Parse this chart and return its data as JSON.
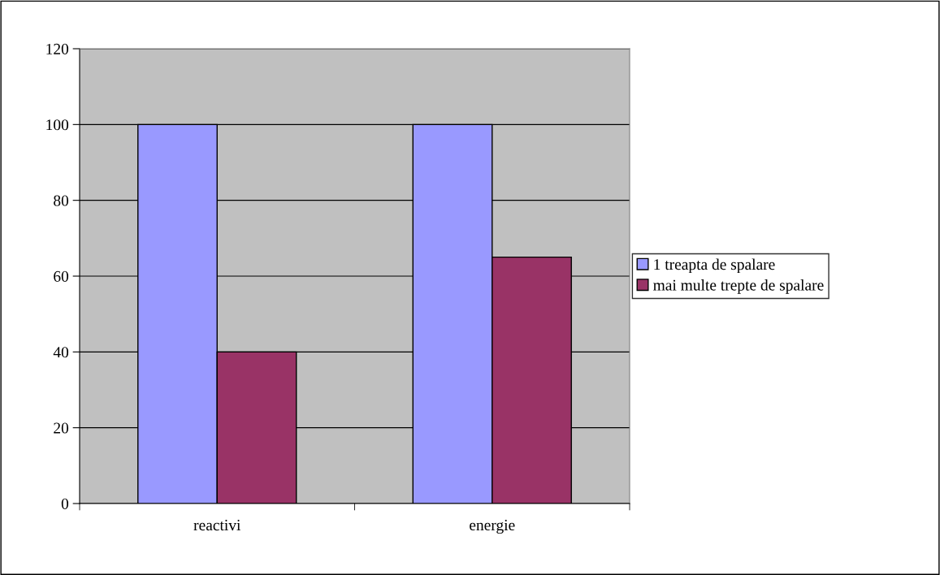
{
  "chart_data": {
    "type": "bar",
    "categories": [
      "reactivi",
      "energie"
    ],
    "series": [
      {
        "name": "1 treapta de spalare",
        "color": "#9999ff",
        "values": [
          100,
          100
        ]
      },
      {
        "name": "mai multe trepte de spalare",
        "color": "#993366",
        "values": [
          40,
          65
        ]
      }
    ],
    "ylim": [
      0,
      120
    ],
    "yticks": [
      0,
      20,
      40,
      60,
      80,
      100,
      120
    ],
    "grid": "y",
    "legend": "right"
  }
}
